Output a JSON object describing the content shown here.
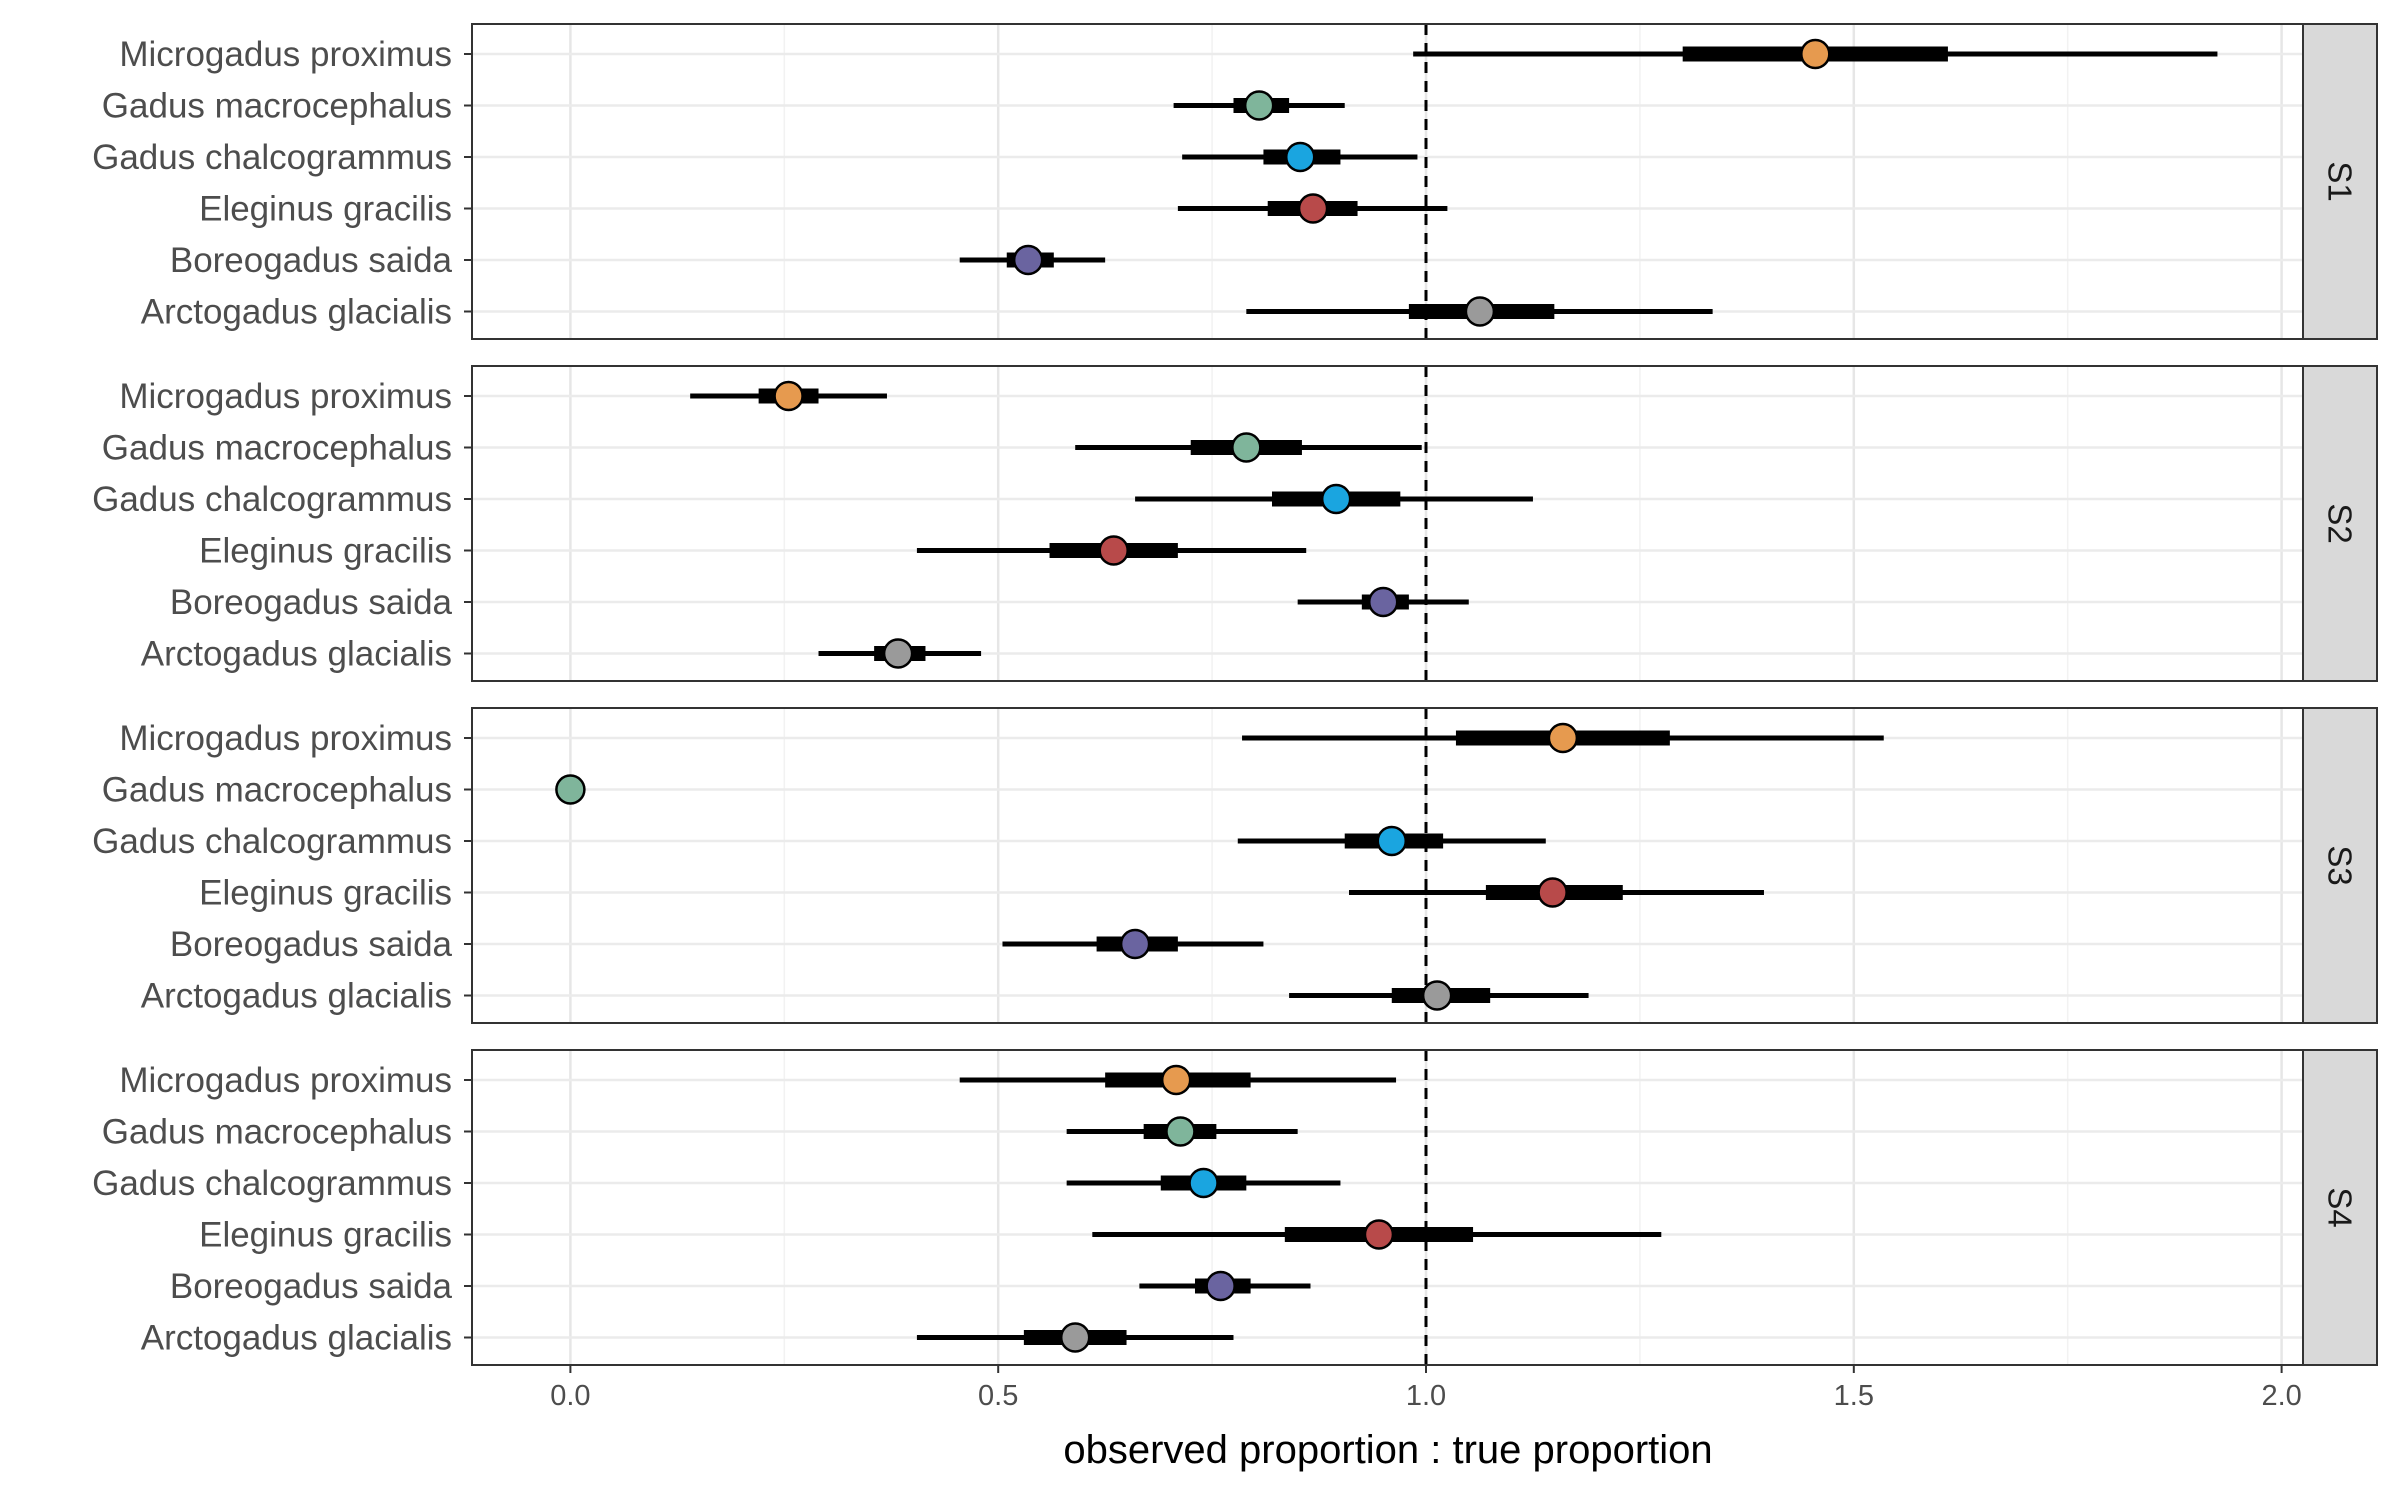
{
  "chart_data": {
    "type": "forest",
    "xlabel": "observed proportion : true proportion",
    "xlim": [
      -0.115,
      2.025
    ],
    "x_ticks": [
      0.0,
      0.5,
      1.0,
      1.5,
      2.0
    ],
    "x_tick_labels": [
      "0.0",
      "0.5",
      "1.0",
      "1.5",
      "2.0"
    ],
    "reference_line": 1.0,
    "grid": true,
    "species": [
      "Microgadus proximus",
      "Gadus macrocephalus",
      "Gadus chalcogrammus",
      "Eleginus gracilis",
      "Boreogadus saida",
      "Arctogadus glacialis"
    ],
    "colors": {
      "Microgadus proximus": "#E69A4F",
      "Gadus macrocephalus": "#7FB59B",
      "Gadus chalcogrammus": "#1AA5E0",
      "Eleginus gracilis": "#B84A4A",
      "Boreogadus saida": "#6A64A0",
      "Arctogadus glacialis": "#9A9A9A"
    },
    "panels": [
      {
        "label": "S1",
        "rows": [
          {
            "species": "Microgadus proximus",
            "median": 1.455,
            "inner": [
              1.3,
              1.61
            ],
            "outer": [
              0.985,
              1.925
            ]
          },
          {
            "species": "Gadus macrocephalus",
            "median": 0.805,
            "inner": [
              0.775,
              0.84
            ],
            "outer": [
              0.705,
              0.905
            ]
          },
          {
            "species": "Gadus chalcogrammus",
            "median": 0.853,
            "inner": [
              0.81,
              0.9
            ],
            "outer": [
              0.715,
              0.99
            ]
          },
          {
            "species": "Eleginus gracilis",
            "median": 0.868,
            "inner": [
              0.815,
              0.92
            ],
            "outer": [
              0.71,
              1.025
            ]
          },
          {
            "species": "Boreogadus saida",
            "median": 0.535,
            "inner": [
              0.51,
              0.565
            ],
            "outer": [
              0.455,
              0.625
            ]
          },
          {
            "species": "Arctogadus glacialis",
            "median": 1.063,
            "inner": [
              0.98,
              1.15
            ],
            "outer": [
              0.79,
              1.335
            ]
          }
        ]
      },
      {
        "label": "S2",
        "rows": [
          {
            "species": "Microgadus proximus",
            "median": 0.255,
            "inner": [
              0.22,
              0.29
            ],
            "outer": [
              0.14,
              0.37
            ]
          },
          {
            "species": "Gadus macrocephalus",
            "median": 0.79,
            "inner": [
              0.725,
              0.855
            ],
            "outer": [
              0.59,
              0.995
            ]
          },
          {
            "species": "Gadus chalcogrammus",
            "median": 0.895,
            "inner": [
              0.82,
              0.97
            ],
            "outer": [
              0.66,
              1.125
            ]
          },
          {
            "species": "Eleginus gracilis",
            "median": 0.635,
            "inner": [
              0.56,
              0.71
            ],
            "outer": [
              0.405,
              0.86
            ]
          },
          {
            "species": "Boreogadus saida",
            "median": 0.95,
            "inner": [
              0.925,
              0.98
            ],
            "outer": [
              0.85,
              1.05
            ]
          },
          {
            "species": "Arctogadus glacialis",
            "median": 0.383,
            "inner": [
              0.355,
              0.415
            ],
            "outer": [
              0.29,
              0.48
            ]
          }
        ]
      },
      {
        "label": "S3",
        "rows": [
          {
            "species": "Microgadus proximus",
            "median": 1.16,
            "inner": [
              1.035,
              1.285
            ],
            "outer": [
              0.785,
              1.535
            ]
          },
          {
            "species": "Gadus macrocephalus",
            "median": 0.0,
            "inner": [
              0.0,
              0.0
            ],
            "outer": [
              0.0,
              0.0
            ]
          },
          {
            "species": "Gadus chalcogrammus",
            "median": 0.96,
            "inner": [
              0.905,
              1.02
            ],
            "outer": [
              0.78,
              1.14
            ]
          },
          {
            "species": "Eleginus gracilis",
            "median": 1.148,
            "inner": [
              1.07,
              1.23
            ],
            "outer": [
              0.91,
              1.395
            ]
          },
          {
            "species": "Boreogadus saida",
            "median": 0.66,
            "inner": [
              0.615,
              0.71
            ],
            "outer": [
              0.505,
              0.81
            ]
          },
          {
            "species": "Arctogadus glacialis",
            "median": 1.013,
            "inner": [
              0.96,
              1.075
            ],
            "outer": [
              0.84,
              1.19
            ]
          }
        ]
      },
      {
        "label": "S4",
        "rows": [
          {
            "species": "Microgadus proximus",
            "median": 0.708,
            "inner": [
              0.625,
              0.795
            ],
            "outer": [
              0.455,
              0.965
            ]
          },
          {
            "species": "Gadus macrocephalus",
            "median": 0.713,
            "inner": [
              0.67,
              0.755
            ],
            "outer": [
              0.58,
              0.85
            ]
          },
          {
            "species": "Gadus chalcogrammus",
            "median": 0.74,
            "inner": [
              0.69,
              0.79
            ],
            "outer": [
              0.58,
              0.9
            ]
          },
          {
            "species": "Eleginus gracilis",
            "median": 0.945,
            "inner": [
              0.835,
              1.055
            ],
            "outer": [
              0.61,
              1.275
            ]
          },
          {
            "species": "Boreogadus saida",
            "median": 0.76,
            "inner": [
              0.73,
              0.795
            ],
            "outer": [
              0.665,
              0.865
            ]
          },
          {
            "species": "Arctogadus glacialis",
            "median": 0.59,
            "inner": [
              0.53,
              0.65
            ],
            "outer": [
              0.405,
              0.775
            ]
          }
        ]
      }
    ]
  }
}
